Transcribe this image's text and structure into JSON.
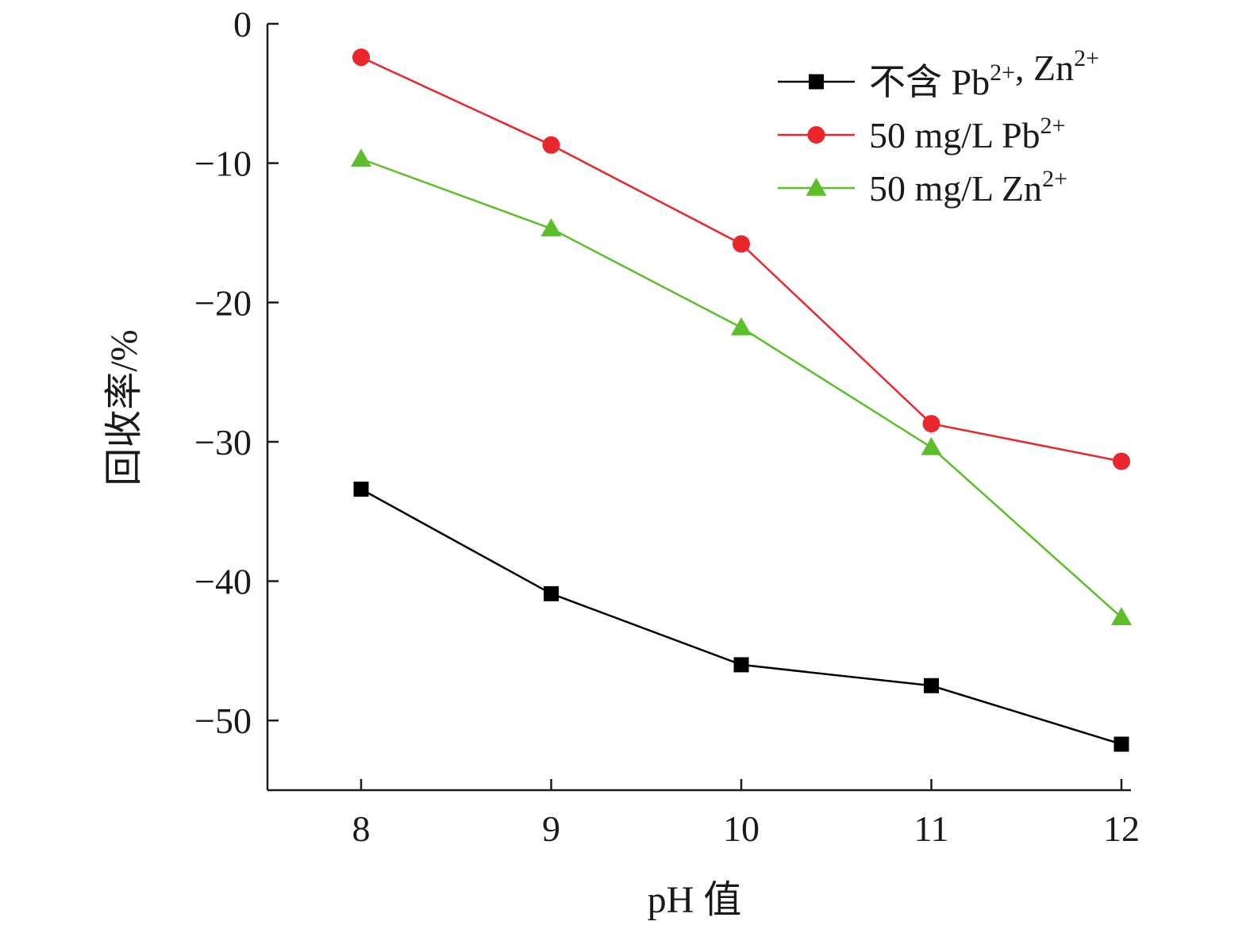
{
  "chart_data": {
    "type": "line",
    "xlabel": "pH 值",
    "ylabel": "回收率/%",
    "x": [
      8,
      9,
      10,
      11,
      12
    ],
    "xlim": [
      7.5,
      12
    ],
    "ylim": [
      -55,
      0
    ],
    "yticks": [
      0,
      -10,
      -20,
      -30,
      -40,
      -50
    ],
    "ytick_labels": [
      "0",
      "−10",
      "−20",
      "−30",
      "−40",
      "−50"
    ],
    "xtick_labels": [
      "8",
      "9",
      "10",
      "11",
      "12"
    ],
    "grid": false,
    "legend_position": "top-right",
    "series": [
      {
        "name": "不含 Pb2+, Zn2+",
        "legend_main": "不含 Pb",
        "legend_sup1": "2+",
        "legend_mid": ", Zn",
        "legend_sup2": "2+",
        "color": "#000000",
        "marker": "square",
        "values": [
          -33.4,
          -40.9,
          -46.0,
          -47.5,
          -51.7
        ]
      },
      {
        "name": "50 mg/L Pb2+",
        "legend_main": "50 mg/L Pb",
        "legend_sup1": "2+",
        "legend_mid": "",
        "legend_sup2": "",
        "color": "#e8262b",
        "marker": "circle",
        "values": [
          -2.4,
          -8.7,
          -15.8,
          -28.7,
          -31.4
        ]
      },
      {
        "name": "50 mg/L Zn2+",
        "legend_main": "50 mg/L Zn",
        "legend_sup1": "2+",
        "legend_mid": "",
        "legend_sup2": "",
        "color": "#5cbf2a",
        "marker": "triangle",
        "values": [
          -9.7,
          -14.7,
          -21.8,
          -30.4,
          -42.6
        ]
      }
    ]
  }
}
